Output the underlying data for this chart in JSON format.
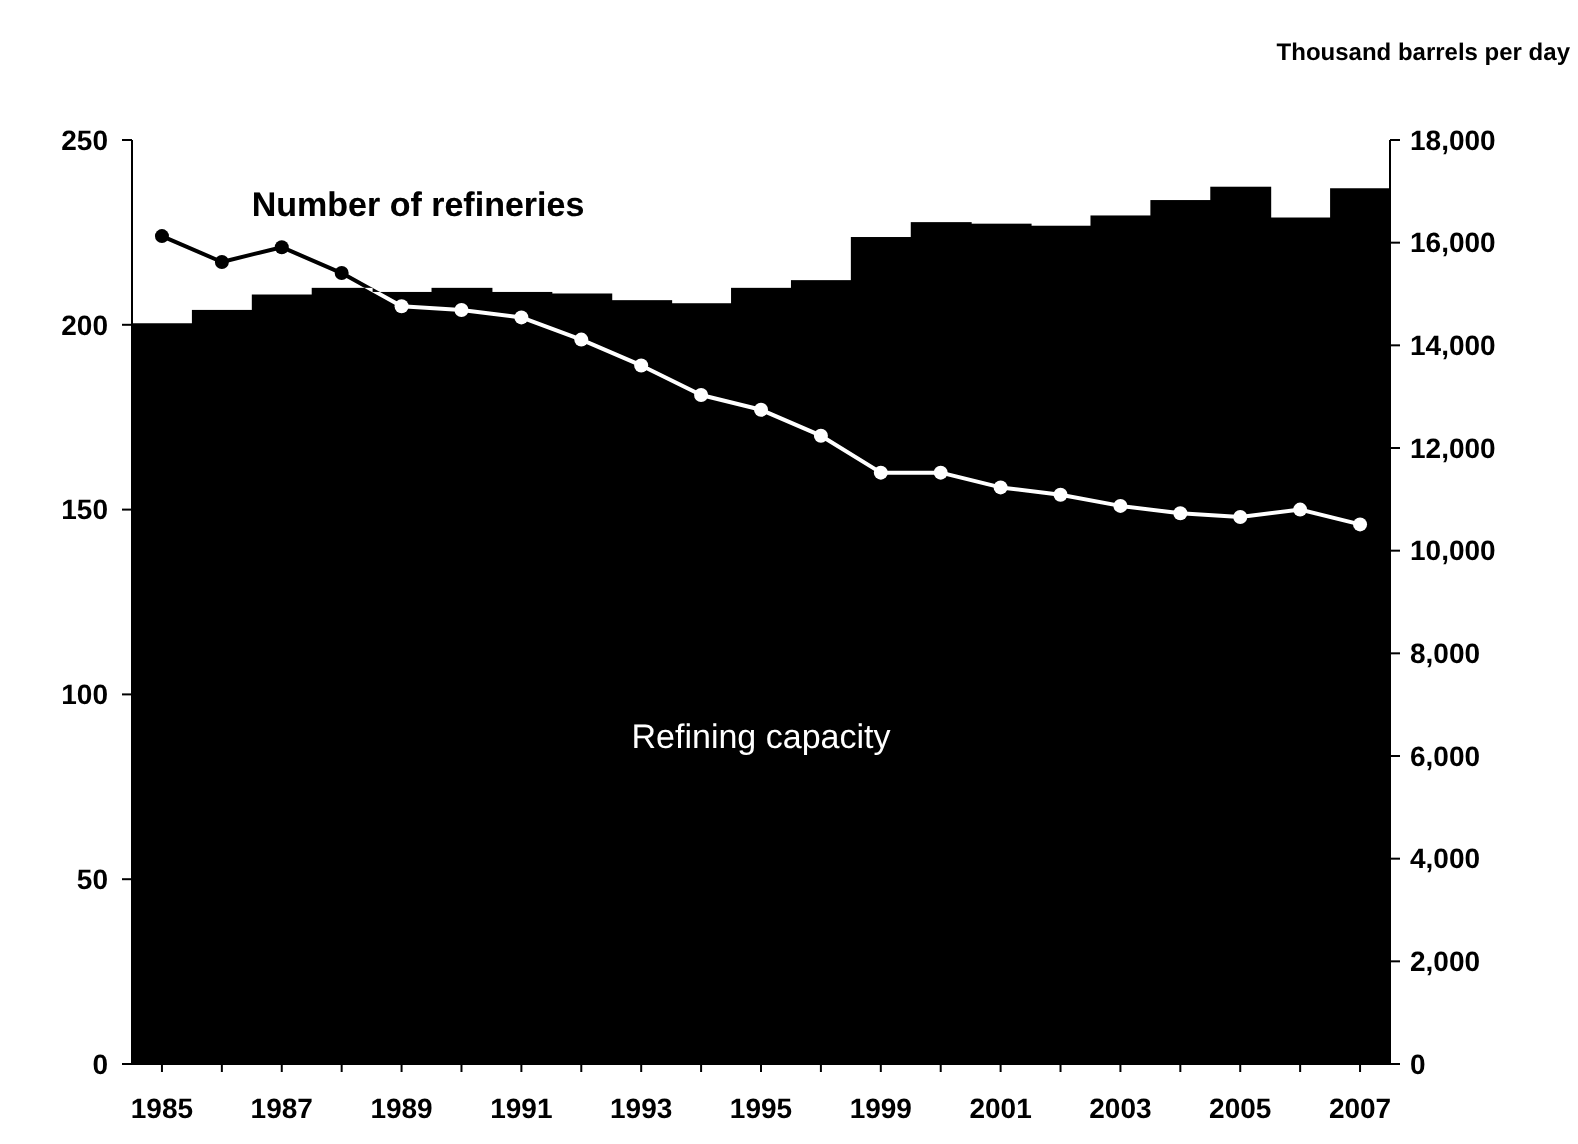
{
  "chart_data": {
    "type": "bar",
    "y2label": "Thousand barrels per day",
    "categories": [
      "1985",
      null,
      "1987",
      null,
      "1989",
      null,
      "1991",
      null,
      "1993",
      null,
      "1995",
      null,
      "1999",
      null,
      "2001",
      null,
      "2003",
      null,
      "2005",
      null,
      "2007"
    ],
    "series": [
      {
        "name": "Refining capacity",
        "axis": "y2",
        "color": "#000000",
        "values": [
          14430,
          14690,
          14990,
          15120,
          15040,
          15120,
          15040,
          15010,
          14880,
          14820,
          15120,
          15270,
          16110,
          16400,
          16370,
          16330,
          16530,
          16830,
          17090,
          16490,
          17060
        ]
      },
      {
        "name": "Number of refineries",
        "type": "line",
        "axis": "y",
        "color": "#ffffff",
        "marker": "circle",
        "values": [
          224,
          217,
          221,
          214,
          205,
          204,
          202,
          196,
          189,
          181,
          177,
          170,
          160,
          160,
          156,
          154,
          151,
          149,
          148,
          150,
          146
        ]
      }
    ],
    "ylim": [
      0,
      250
    ],
    "yticks": [
      0,
      50,
      100,
      150,
      200,
      250
    ],
    "y2lim": [
      0,
      18000
    ],
    "y2ticks": [
      0,
      {
        "value": 2000,
        "label": "2,000"
      },
      {
        "value": 4000,
        "label": "4,000"
      },
      {
        "value": 6000,
        "label": "6,000"
      },
      {
        "value": 8000,
        "label": "8,000"
      },
      {
        "value": 10000,
        "label": "10,000"
      },
      {
        "value": 12000,
        "label": "12,000"
      },
      {
        "value": 14000,
        "label": "14,000"
      },
      {
        "value": 16000,
        "label": "16,000"
      },
      {
        "value": 18000,
        "label": "18,000"
      }
    ],
    "grid": false
  }
}
